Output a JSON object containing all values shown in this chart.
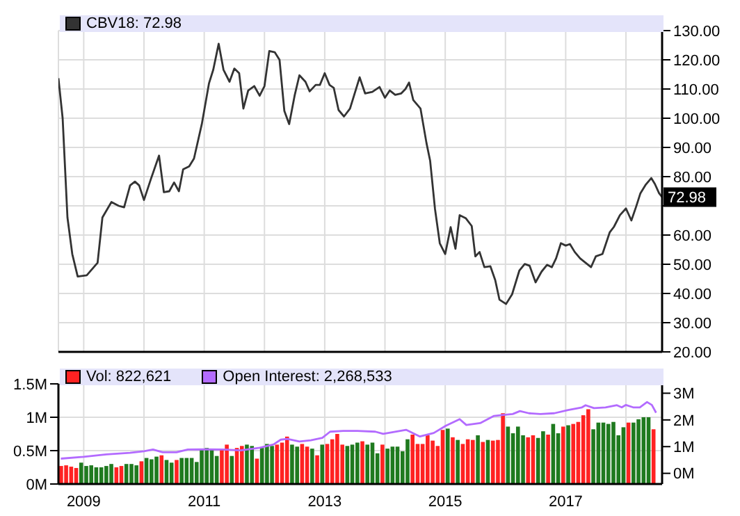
{
  "chart_data": [
    {
      "type": "line",
      "x": [
        2008.58,
        2008.65,
        2008.73,
        2008.81,
        2008.9,
        2009.05,
        2009.23,
        2009.31,
        2009.46,
        2009.58,
        2009.67,
        2009.77,
        2009.85,
        2009.92,
        2010.0,
        2010.12,
        2010.25,
        2010.33,
        2010.42,
        2010.5,
        2010.58,
        2010.65,
        2010.75,
        2010.83,
        2010.96,
        2011.08,
        2011.15,
        2011.24,
        2011.32,
        2011.42,
        2011.5,
        2011.58,
        2011.65,
        2011.73,
        2011.83,
        2011.92,
        2012.0,
        2012.08,
        2012.17,
        2012.25,
        2012.33,
        2012.41,
        2012.5,
        2012.58,
        2012.68,
        2012.75,
        2012.85,
        2012.92,
        2013.0,
        2013.08,
        2013.15,
        2013.23,
        2013.32,
        2013.42,
        2013.58,
        2013.67,
        2013.79,
        2013.91,
        2014.0,
        2014.08,
        2014.17,
        2014.27,
        2014.34,
        2014.4,
        2014.47,
        2014.59,
        2014.69,
        2014.75,
        2014.83,
        2014.91,
        2015.0,
        2015.09,
        2015.17,
        2015.24,
        2015.34,
        2015.44,
        2015.5,
        2015.57,
        2015.65,
        2015.75,
        2015.83,
        2015.9,
        2016.01,
        2016.11,
        2016.23,
        2016.32,
        2016.4,
        2016.5,
        2016.6,
        2016.69,
        2016.77,
        2016.84,
        2016.92,
        2017.0,
        2017.07,
        2017.15,
        2017.24,
        2017.33,
        2017.42,
        2017.5,
        2017.61,
        2017.73,
        2017.8,
        2017.9,
        2018.0,
        2018.09,
        2018.17,
        2018.24,
        2018.33,
        2018.42,
        2018.48,
        2018.55,
        2018.6
      ],
      "series": [
        {
          "name": "CBV18: 72.98",
          "color": "#333333",
          "values": [
            113.7,
            100,
            66,
            53.5,
            45.8,
            46.2,
            50.5,
            66,
            71.3,
            70,
            69.5,
            77,
            78.3,
            77,
            72,
            79.5,
            87.2,
            74.7,
            75,
            78,
            75,
            82.5,
            83.5,
            86.2,
            98,
            112,
            116.6,
            125.5,
            116.6,
            112.5,
            117,
            115.4,
            103.3,
            109.5,
            111,
            107.7,
            111,
            123,
            122.6,
            120,
            102.5,
            98,
            107.7,
            114.7,
            112.5,
            109.2,
            111.4,
            111.4,
            115.4,
            111.4,
            110.4,
            102.8,
            100.6,
            103.3,
            114,
            108.5,
            109,
            110.7,
            107,
            109.5,
            108,
            108.5,
            110,
            112.2,
            106.2,
            103.3,
            91.4,
            85.4,
            69,
            57.2,
            53.5,
            62.7,
            55.3,
            66.8,
            65.8,
            63.1,
            52.7,
            54.2,
            49,
            49.3,
            44.6,
            37.9,
            36.4,
            39.7,
            47.8,
            50.1,
            49.5,
            43.8,
            47.5,
            49.8,
            49,
            52,
            57.2,
            56.4,
            56.9,
            54.2,
            52,
            50.5,
            49,
            52.7,
            53.5,
            60.9,
            62.8,
            66.8,
            69.1,
            65,
            69.8,
            74.3,
            77.3,
            79.5,
            77.5,
            74.3,
            72.98
          ]
        }
      ],
      "xlim": [
        2008.58,
        2018.6
      ],
      "xticks": [
        2009,
        {
          "value": 2010,
          "label": null
        },
        2011,
        {
          "value": 2012,
          "label": null
        },
        2013,
        {
          "value": 2014,
          "label": null
        },
        2015,
        {
          "value": 2016,
          "label": null
        },
        2017,
        {
          "value": 2018,
          "label": null
        }
      ],
      "ylim": [
        20,
        130
      ],
      "yticks": [
        {
          "value": 20,
          "label": "20.00"
        },
        {
          "value": 30,
          "label": "30.00"
        },
        {
          "value": 40,
          "label": "40.00"
        },
        {
          "value": 50,
          "label": "50.00"
        },
        {
          "value": 60,
          "label": "60.00"
        },
        {
          "value": 70,
          "label": null
        },
        {
          "value": 80,
          "label": "80.00"
        },
        {
          "value": 90,
          "label": "90.00"
        },
        {
          "value": 100,
          "label": "100.00"
        },
        {
          "value": 110,
          "label": "110.00"
        },
        {
          "value": 120,
          "label": "120.00"
        },
        {
          "value": 130,
          "label": "130.00"
        }
      ],
      "grid": true,
      "legend": "top left",
      "tick_labels": "y",
      "annotations": [
        {
          "text": "72.98",
          "x": 2018.6,
          "y": 72.98
        }
      ]
    },
    {
      "type": "bar",
      "xlim": [
        2008.58,
        2018.6
      ],
      "xticks": [
        2009,
        {
          "value": 2010,
          "label": null
        },
        2011,
        {
          "value": 2012,
          "label": null
        },
        2013,
        {
          "value": 2014,
          "label": null
        },
        2015,
        {
          "value": 2016,
          "label": null
        },
        2017,
        {
          "value": 2018,
          "label": null
        }
      ],
      "ylim": [
        0,
        1.5
      ],
      "yticks": [
        {
          "value": 0,
          "label": "0M"
        },
        {
          "value": 0.5,
          "label": "0.5M"
        },
        {
          "value": 1,
          "label": "1M"
        },
        {
          "value": 1.5,
          "label": "1.5M"
        }
      ],
      "y2lim": [
        -0.4,
        3.35
      ],
      "y2ticks": [
        {
          "value": 0,
          "label": "0M"
        },
        {
          "value": 1,
          "label": "1M"
        },
        {
          "value": 2,
          "label": "2M"
        },
        {
          "value": 3,
          "label": "3M"
        }
      ],
      "grid": true,
      "legend": "top left",
      "series": [
        {
          "name": "Vol: 822,621",
          "color": "#ff2222",
          "x": [
            2008.625,
            2008.708,
            2008.792,
            2008.875,
            2008.958,
            2009.042,
            2009.125,
            2009.208,
            2009.292,
            2009.375,
            2009.458,
            2009.542,
            2009.625,
            2009.708,
            2009.792,
            2009.875,
            2009.958,
            2010.042,
            2010.125,
            2010.208,
            2010.292,
            2010.375,
            2010.458,
            2010.542,
            2010.625,
            2010.708,
            2010.792,
            2010.875,
            2010.958,
            2011.042,
            2011.125,
            2011.208,
            2011.292,
            2011.375,
            2011.458,
            2011.542,
            2011.625,
            2011.708,
            2011.792,
            2011.875,
            2011.958,
            2012.042,
            2012.125,
            2012.208,
            2012.292,
            2012.375,
            2012.458,
            2012.542,
            2012.625,
            2012.708,
            2012.792,
            2012.875,
            2012.958,
            2013.042,
            2013.125,
            2013.208,
            2013.292,
            2013.375,
            2013.458,
            2013.542,
            2013.625,
            2013.708,
            2013.792,
            2013.875,
            2013.958,
            2014.042,
            2014.125,
            2014.208,
            2014.292,
            2014.375,
            2014.458,
            2014.542,
            2014.625,
            2014.708,
            2014.792,
            2014.875,
            2014.958,
            2015.042,
            2015.125,
            2015.208,
            2015.292,
            2015.375,
            2015.458,
            2015.542,
            2015.625,
            2015.708,
            2015.792,
            2015.875,
            2015.958,
            2016.042,
            2016.125,
            2016.208,
            2016.292,
            2016.375,
            2016.458,
            2016.542,
            2016.625,
            2016.708,
            2016.792,
            2016.875,
            2016.958,
            2017.042,
            2017.125,
            2017.208,
            2017.292,
            2017.375,
            2017.458,
            2017.542,
            2017.625,
            2017.708,
            2017.792,
            2017.875,
            2017.958,
            2018.042,
            2018.125,
            2018.208,
            2018.292,
            2018.375,
            2018.458
          ],
          "values": [
            0.27,
            0.28,
            0.26,
            0.24,
            0.32,
            0.27,
            0.28,
            0.25,
            0.25,
            0.27,
            0.3,
            0.25,
            0.27,
            0.3,
            0.3,
            0.28,
            0.34,
            0.39,
            0.37,
            0.41,
            0.43,
            0.36,
            0.32,
            0.36,
            0.39,
            0.39,
            0.39,
            0.33,
            0.52,
            0.54,
            0.52,
            0.42,
            0.52,
            0.59,
            0.42,
            0.54,
            0.57,
            0.59,
            0.57,
            0.38,
            0.54,
            0.6,
            0.57,
            0.59,
            0.62,
            0.71,
            0.59,
            0.56,
            0.6,
            0.56,
            0.53,
            0.43,
            0.59,
            0.6,
            0.67,
            0.75,
            0.59,
            0.57,
            0.59,
            0.62,
            0.64,
            0.59,
            0.62,
            0.46,
            0.59,
            0.53,
            0.56,
            0.56,
            0.49,
            0.67,
            0.74,
            0.6,
            0.6,
            0.73,
            0.65,
            0.57,
            0.81,
            0.83,
            0.7,
            0.66,
            0.6,
            0.67,
            0.66,
            0.73,
            0.63,
            0.66,
            0.65,
            0.66,
            1.06,
            0.86,
            0.76,
            0.86,
            0.73,
            0.7,
            0.73,
            0.69,
            0.79,
            0.74,
            0.9,
            0.76,
            0.86,
            0.88,
            0.9,
            0.93,
            1.03,
            1.12,
            0.82,
            0.92,
            0.92,
            0.9,
            0.93,
            0.73,
            0.85,
            0.92,
            0.92,
            0.97,
            1.0,
            1.0,
            0.82
          ],
          "colors": [
            "#ff2222",
            "#ff2222",
            "#ff2222",
            "#ff2222",
            "#1f7a1f",
            "#1f7a1f",
            "#1f7a1f",
            "#1f7a1f",
            "#1f7a1f",
            "#1f7a1f",
            "#1f7a1f",
            "#ff2222",
            "#ff2222",
            "#1f7a1f",
            "#1f7a1f",
            "#1f7a1f",
            "#ff2222",
            "#1f7a1f",
            "#1f7a1f",
            "#1f7a1f",
            "#ff2222",
            "#1f7a1f",
            "#1f7a1f",
            "#ff2222",
            "#1f7a1f",
            "#1f7a1f",
            "#1f7a1f",
            "#1f7a1f",
            "#1f7a1f",
            "#1f7a1f",
            "#1f7a1f",
            "#1f7a1f",
            "#ff2222",
            "#ff2222",
            "#1f7a1f",
            "#ff2222",
            "#ff2222",
            "#1f7a1f",
            "#1f7a1f",
            "#ff2222",
            "#1f7a1f",
            "#1f7a1f",
            "#1f7a1f",
            "#ff2222",
            "#ff2222",
            "#ff2222",
            "#1f7a1f",
            "#1f7a1f",
            "#ff2222",
            "#ff2222",
            "#1f7a1f",
            "#ff2222",
            "#1f7a1f",
            "#ff2222",
            "#ff2222",
            "#ff2222",
            "#ff2222",
            "#1f7a1f",
            "#1f7a1f",
            "#1f7a1f",
            "#ff2222",
            "#1f7a1f",
            "#1f7a1f",
            "#1f7a1f",
            "#ff2222",
            "#1f7a1f",
            "#1f7a1f",
            "#1f7a1f",
            "#1f7a1f",
            "#1f7a1f",
            "#ff2222",
            "#ff2222",
            "#ff2222",
            "#ff2222",
            "#ff2222",
            "#ff2222",
            "#ff2222",
            "#1f7a1f",
            "#ff2222",
            "#1f7a1f",
            "#ff2222",
            "#ff2222",
            "#ff2222",
            "#1f7a1f",
            "#ff2222",
            "#1f7a1f",
            "#ff2222",
            "#ff2222",
            "#ff2222",
            "#1f7a1f",
            "#1f7a1f",
            "#1f7a1f",
            "#1f7a1f",
            "#ff2222",
            "#ff2222",
            "#1f7a1f",
            "#1f7a1f",
            "#ff2222",
            "#1f7a1f",
            "#1f7a1f",
            "#ff2222",
            "#1f7a1f",
            "#ff2222",
            "#ff2222",
            "#ff2222",
            "#ff2222",
            "#1f7a1f",
            "#1f7a1f",
            "#1f7a1f",
            "#1f7a1f",
            "#1f7a1f",
            "#1f7a1f",
            "#1f7a1f",
            "#ff2222",
            "#1f7a1f",
            "#1f7a1f",
            "#1f7a1f",
            "#1f7a1f",
            "#ff2222"
          ]
        },
        {
          "name": "Open Interest: 2,268,533",
          "type": "line",
          "axis": "y2",
          "color": "#b36bff",
          "x": [
            2008.62,
            2009.0,
            2009.38,
            2009.77,
            2010.0,
            2010.15,
            2010.31,
            2010.54,
            2010.73,
            2011.0,
            2011.31,
            2011.61,
            2011.92,
            2012.15,
            2012.27,
            2012.38,
            2012.58,
            2012.77,
            2012.96,
            2013.09,
            2013.31,
            2013.54,
            2013.84,
            2013.97,
            2014.35,
            2014.58,
            2014.81,
            2015.01,
            2015.24,
            2015.35,
            2015.58,
            2015.81,
            2015.97,
            2016.12,
            2016.24,
            2016.39,
            2016.58,
            2016.81,
            2017.04,
            2017.27,
            2017.33,
            2017.47,
            2017.66,
            2017.85,
            2017.93,
            2018.0,
            2018.12,
            2018.23,
            2018.35,
            2018.43,
            2018.5
          ],
          "values": [
            0.55,
            0.62,
            0.71,
            0.77,
            0.83,
            0.89,
            0.79,
            0.79,
            0.89,
            0.9,
            0.89,
            0.86,
            0.96,
            1.08,
            1.26,
            1.29,
            1.19,
            1.24,
            1.33,
            1.56,
            1.59,
            1.59,
            1.56,
            1.48,
            1.63,
            1.38,
            1.51,
            1.78,
            2.03,
            1.81,
            1.88,
            2.15,
            2.19,
            2.22,
            2.33,
            2.25,
            2.22,
            2.25,
            2.37,
            2.47,
            2.55,
            2.44,
            2.47,
            2.55,
            2.47,
            2.56,
            2.47,
            2.47,
            2.67,
            2.56,
            2.27
          ]
        }
      ]
    }
  ]
}
